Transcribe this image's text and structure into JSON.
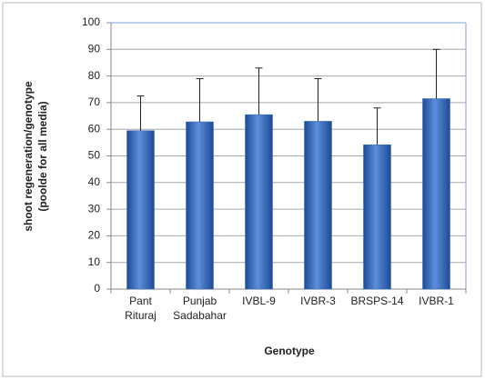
{
  "chart_data": {
    "type": "bar",
    "ylabel": [
      "shoot regeneration/genotype",
      "(poolde for all media)"
    ],
    "xlabel": "Genotype",
    "categories": [
      "Pant Rituraj",
      "Punjab Sadabahar",
      "IVBL-9",
      "IVBR-3",
      "BRSPS-14",
      "IVBR-1"
    ],
    "values": [
      59.5,
      62.8,
      65.5,
      63,
      54.2,
      71.5
    ],
    "errors": [
      13,
      16.2,
      17.5,
      16,
      13.8,
      18.5
    ],
    "color": "#2f64b8",
    "ylim": [
      0,
      100
    ],
    "yticks": [
      0,
      10,
      20,
      30,
      40,
      50,
      60,
      70,
      80,
      90,
      100
    ],
    "grid": true
  }
}
